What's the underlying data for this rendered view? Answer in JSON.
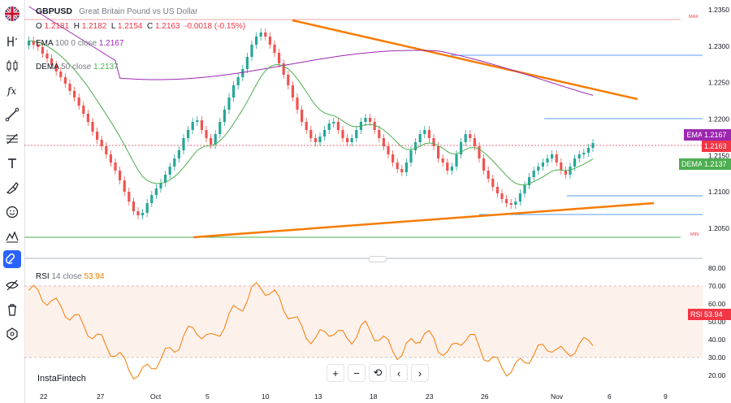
{
  "symbol": {
    "ticker": "GBPUSD",
    "name": "Great Britain Pound vs US Dollar",
    "ohlc": {
      "o_label": "O",
      "o": "1.2181",
      "h_label": "H",
      "h": "1.2182",
      "l_label": "L",
      "l": "1.2154",
      "c_label": "C",
      "c": "1.2163",
      "change": "-0.0018 (-0.15%)"
    }
  },
  "indicators": {
    "ema": {
      "name": "EMA",
      "params": "100 0 close",
      "value": "1.2167",
      "color": "#9c27b0"
    },
    "dema": {
      "name": "DEMA",
      "params": "50 close",
      "value": "1.2137",
      "color": "#4caf50"
    },
    "rsi": {
      "name": "RSI",
      "params": "14 close",
      "value": "53.94",
      "color": "#f57c00"
    }
  },
  "price_axis": {
    "labels": [
      "1.2350",
      "1.2300",
      "1.2250",
      "1.2200",
      "1.2150",
      "1.2100",
      "1.2050"
    ],
    "max_label": "MAX",
    "min_label": "MIN"
  },
  "price_tags": {
    "ema": {
      "label": "EMA",
      "value": "1.2167",
      "color": "#9c27b0"
    },
    "last": {
      "value": "1.2163",
      "color": "#f23645"
    },
    "dema": {
      "label": "DEMA",
      "value": "1.2137",
      "color": "#4caf50"
    }
  },
  "rsi_axis": {
    "labels": [
      "80.00",
      "70.00",
      "60.00",
      "50.00",
      "40.00",
      "30.00",
      "20.00"
    ],
    "tag": {
      "label": "RSI",
      "value": "53.94"
    }
  },
  "time_axis": {
    "labels": [
      "22",
      "27",
      "Oct",
      "5",
      "10",
      "13",
      "18",
      "23",
      "26",
      "Nov",
      "6",
      "9"
    ]
  },
  "toolbar": {
    "zoom_in": "+",
    "zoom_out": "−",
    "reset": "⟲",
    "prev": "‹",
    "next": "›"
  },
  "branding": {
    "brand": "InstaFintech"
  },
  "colors": {
    "up": "#26a69a",
    "down": "#ef5350",
    "trendline": "#f57c00",
    "accent": "#2962ff",
    "level_line": "#4caf50"
  }
}
